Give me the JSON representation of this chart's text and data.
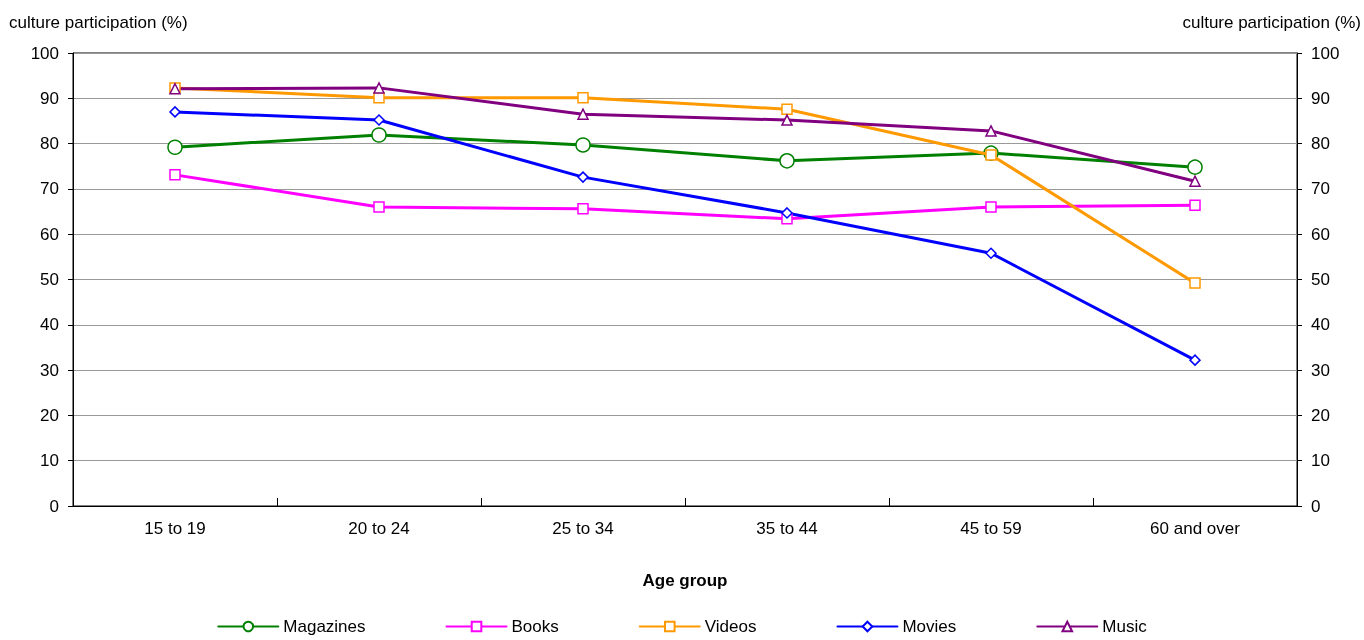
{
  "chart_data": {
    "type": "line",
    "xlabel": "Age group",
    "ylabel": "culture participation (%)",
    "y2label": "culture participation (%)",
    "categories": [
      "15 to 19",
      "20 to 24",
      "25 to 34",
      "35 to 44",
      "45 to 59",
      "60 and over"
    ],
    "series": [
      {
        "name": "Magazines",
        "color": "#008000",
        "marker": "circle",
        "values": [
          79.2,
          81.9,
          79.7,
          76.2,
          77.9,
          74.8
        ]
      },
      {
        "name": "Books",
        "color": "#ff00ff",
        "marker": "square",
        "values": [
          73.1,
          66.0,
          65.6,
          63.4,
          66.0,
          66.4
        ]
      },
      {
        "name": "Videos",
        "color": "#ff9900",
        "marker": "square",
        "values": [
          92.3,
          90.1,
          90.1,
          87.6,
          77.5,
          49.2
        ]
      },
      {
        "name": "Movies",
        "color": "#0000ff",
        "marker": "diamond",
        "values": [
          87.0,
          85.2,
          72.6,
          64.7,
          55.8,
          32.2
        ]
      },
      {
        "name": "Music",
        "color": "#800080",
        "marker": "triangle",
        "values": [
          92.1,
          92.3,
          86.5,
          85.2,
          82.8,
          71.7
        ]
      }
    ],
    "ylim": [
      0,
      100
    ],
    "yticks": [
      0,
      10,
      20,
      30,
      40,
      50,
      60,
      70,
      80,
      90,
      100
    ],
    "y2lim": [
      0,
      100
    ],
    "y2ticks": [
      0,
      10,
      20,
      30,
      40,
      50,
      60,
      70,
      80,
      90,
      100
    ],
    "grid": "y",
    "legend": "bottom",
    "line_style": "solid"
  }
}
